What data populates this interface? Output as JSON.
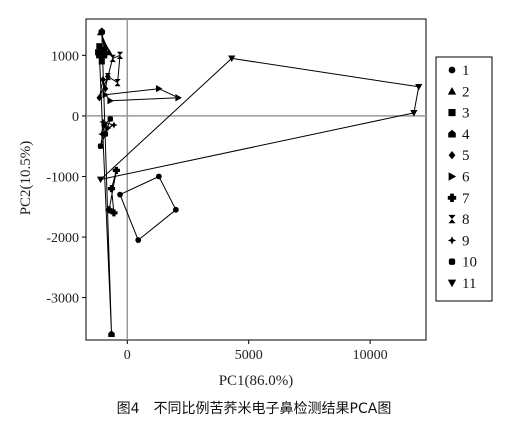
{
  "caption": "图4　不同比例苦荞米电子鼻检测结果PCA图",
  "chart_data": {
    "type": "scatter",
    "xlabel": "PC1(86.0%)",
    "ylabel": "PC2(10.5%)",
    "xlim": [
      -1700,
      12300
    ],
    "ylim": [
      -3700,
      1600
    ],
    "x_ticks": [
      0,
      5000,
      10000
    ],
    "y_ticks": [
      1000,
      0,
      -1000,
      -2000,
      -3000
    ],
    "reference_lines": {
      "x": 0,
      "y": 0
    },
    "legend_position": "right",
    "series": [
      {
        "name": "1",
        "marker": "circle",
        "points": [
          [
            1300,
            -1000
          ],
          [
            2000,
            -1550
          ],
          [
            450,
            -2050
          ],
          [
            -300,
            -1300
          ]
        ]
      },
      {
        "name": "2",
        "marker": "triangle-up",
        "points": [
          [
            -1100,
            1380
          ],
          [
            -900,
            1150
          ],
          [
            -1000,
            1000
          ],
          [
            -750,
            1050
          ]
        ]
      },
      {
        "name": "3",
        "marker": "square",
        "points": [
          [
            -1150,
            1150
          ],
          [
            -1050,
            900
          ],
          [
            -1200,
            1050
          ],
          [
            -950,
            1000
          ]
        ]
      },
      {
        "name": "4",
        "marker": "house",
        "points": [
          [
            -1050,
            1400
          ],
          [
            -950,
            1100
          ],
          [
            -1150,
            1000
          ],
          [
            -650,
            -3600
          ]
        ]
      },
      {
        "name": "5",
        "marker": "diamond",
        "points": [
          [
            -1000,
            600
          ],
          [
            -1150,
            300
          ],
          [
            -800,
            650
          ],
          [
            -900,
            450
          ]
        ]
      },
      {
        "name": "6",
        "marker": "triangle-right",
        "points": [
          [
            -900,
            350
          ],
          [
            1300,
            450
          ],
          [
            2100,
            300
          ],
          [
            -700,
            250
          ]
        ]
      },
      {
        "name": "7",
        "marker": "plus",
        "points": [
          [
            -550,
            -1600
          ],
          [
            -750,
            -1550
          ],
          [
            -450,
            -900
          ],
          [
            -650,
            -1200
          ]
        ]
      },
      {
        "name": "8",
        "marker": "bowtie",
        "points": [
          [
            -300,
            1000
          ],
          [
            -600,
            950
          ],
          [
            -800,
            650
          ],
          [
            -400,
            550
          ]
        ]
      },
      {
        "name": "9",
        "marker": "star4",
        "points": [
          [
            -1000,
            -100
          ],
          [
            -1050,
            -300
          ],
          [
            -800,
            -200
          ],
          [
            -550,
            -150
          ]
        ]
      },
      {
        "name": "10",
        "marker": "rounded-square",
        "points": [
          [
            -1100,
            -500
          ],
          [
            -950,
            -150
          ],
          [
            -700,
            -50
          ],
          [
            -900,
            -300
          ]
        ]
      },
      {
        "name": "11",
        "marker": "triangle-down",
        "points": [
          [
            4300,
            950
          ],
          [
            12000,
            480
          ],
          [
            11800,
            50
          ],
          [
            -1100,
            -1050
          ]
        ]
      }
    ]
  }
}
